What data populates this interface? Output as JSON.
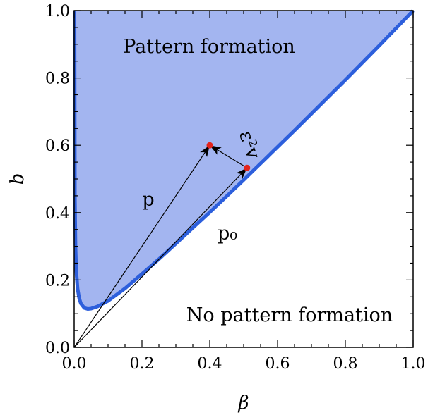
{
  "chart_data": {
    "type": "area",
    "xlabel": "β",
    "ylabel": "b",
    "xlim": [
      0,
      1
    ],
    "ylim": [
      0,
      1
    ],
    "grid": false,
    "xticks": [
      "0.0",
      "0.2",
      "0.4",
      "0.6",
      "0.8",
      "1.0"
    ],
    "yticks": [
      "0.0",
      "0.2",
      "0.4",
      "0.6",
      "0.8",
      "1.0"
    ],
    "boundary": {
      "x": [
        0.001,
        0.002,
        0.004,
        0.006,
        0.01,
        0.015,
        0.02,
        0.03,
        0.04,
        0.05,
        0.07,
        0.1,
        0.15,
        0.2,
        0.25,
        0.3,
        0.35,
        0.4,
        0.45,
        0.5,
        0.55,
        0.6,
        0.65,
        0.7,
        0.75,
        0.8,
        0.85,
        0.9,
        0.95,
        1.0
      ],
      "y": [
        1.0,
        0.45,
        0.3,
        0.23,
        0.175,
        0.145,
        0.13,
        0.117,
        0.114,
        0.115,
        0.122,
        0.138,
        0.175,
        0.218,
        0.262,
        0.308,
        0.355,
        0.401,
        0.449,
        0.497,
        0.546,
        0.595,
        0.644,
        0.694,
        0.744,
        0.794,
        0.845,
        0.896,
        0.948,
        1.0
      ]
    },
    "regions": {
      "pattern": "Pattern formation",
      "no_pattern": "No pattern formation"
    },
    "points": [
      {
        "x": 0.4,
        "y": 0.6
      },
      {
        "x": 0.51,
        "y": 0.533
      }
    ],
    "vectors": [
      {
        "label": "p",
        "from": [
          0,
          0
        ],
        "to": [
          0.4,
          0.6
        ]
      },
      {
        "label": "p₀",
        "from": [
          0,
          0
        ],
        "to": [
          0.51,
          0.533
        ]
      },
      {
        "label": "ε²v",
        "from": [
          0.51,
          0.533
        ],
        "to": [
          0.4,
          0.6
        ]
      }
    ],
    "colors": {
      "fill": "#a3b5f0",
      "boundary": "#2d5fdc",
      "point": "#e3231c"
    }
  }
}
